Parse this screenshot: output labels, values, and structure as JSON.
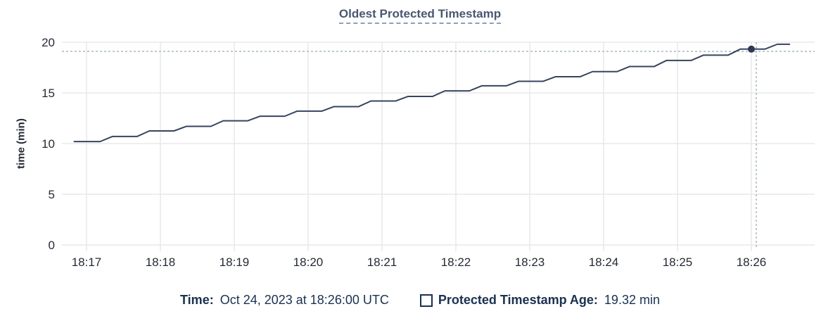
{
  "colors": {
    "background": "#ffffff",
    "title": "#475872",
    "title_underline": "#8aa0bd",
    "line": "#36455f",
    "dot": "#2b3a52",
    "crosshair": "#a7b9c2",
    "grid": "#e8e8e8",
    "tick_text": "#242a35",
    "legend_text": "#1b3150"
  },
  "chart_data": {
    "type": "line",
    "title": "Oldest Protected Timestamp",
    "xlabel": "",
    "ylabel": "time (min)",
    "ylim": [
      0,
      20
    ],
    "y_ticks": [
      0,
      5,
      10,
      15,
      20
    ],
    "x_ticks": [
      "18:17",
      "18:18",
      "18:19",
      "18:20",
      "18:21",
      "18:22",
      "18:23",
      "18:24",
      "18:25",
      "18:26"
    ],
    "grid": true,
    "legend_position": "bottom",
    "series": [
      {
        "name": "Protected Timestamp Age",
        "unit": "min",
        "points": [
          [
            "18:16:50",
            10.2
          ],
          [
            "18:17:11",
            10.2
          ],
          [
            "18:17:21",
            10.7
          ],
          [
            "18:17:41",
            10.7
          ],
          [
            "18:17:51",
            11.25
          ],
          [
            "18:18:11",
            11.25
          ],
          [
            "18:18:21",
            11.7
          ],
          [
            "18:18:41",
            11.7
          ],
          [
            "18:18:51",
            12.25
          ],
          [
            "18:19:11",
            12.25
          ],
          [
            "18:19:21",
            12.7
          ],
          [
            "18:19:41",
            12.7
          ],
          [
            "18:19:51",
            13.2
          ],
          [
            "18:20:11",
            13.2
          ],
          [
            "18:20:21",
            13.65
          ],
          [
            "18:20:41",
            13.65
          ],
          [
            "18:20:51",
            14.2
          ],
          [
            "18:21:11",
            14.2
          ],
          [
            "18:21:21",
            14.65
          ],
          [
            "18:21:41",
            14.65
          ],
          [
            "18:21:51",
            15.2
          ],
          [
            "18:22:11",
            15.2
          ],
          [
            "18:22:21",
            15.7
          ],
          [
            "18:22:41",
            15.7
          ],
          [
            "18:22:51",
            16.15
          ],
          [
            "18:23:11",
            16.15
          ],
          [
            "18:23:21",
            16.6
          ],
          [
            "18:23:41",
            16.6
          ],
          [
            "18:23:51",
            17.1
          ],
          [
            "18:24:11",
            17.1
          ],
          [
            "18:24:21",
            17.6
          ],
          [
            "18:24:41",
            17.6
          ],
          [
            "18:24:51",
            18.2
          ],
          [
            "18:25:11",
            18.2
          ],
          [
            "18:25:21",
            18.72
          ],
          [
            "18:25:41",
            18.72
          ],
          [
            "18:25:51",
            19.32
          ],
          [
            "18:26:11",
            19.32
          ],
          [
            "18:26:21",
            19.8
          ],
          [
            "18:26:31",
            19.8
          ]
        ]
      }
    ],
    "crosshair": {
      "time": "18:26:04",
      "hline_value": 19.1
    },
    "highlight_point": {
      "time": "18:26:00",
      "value": 19.32
    }
  },
  "footer": {
    "time_label": "Time:",
    "time_value": "Oct 24, 2023 at 18:26:00 UTC",
    "series_label": "Protected Timestamp Age:",
    "series_value": "19.32 min"
  }
}
